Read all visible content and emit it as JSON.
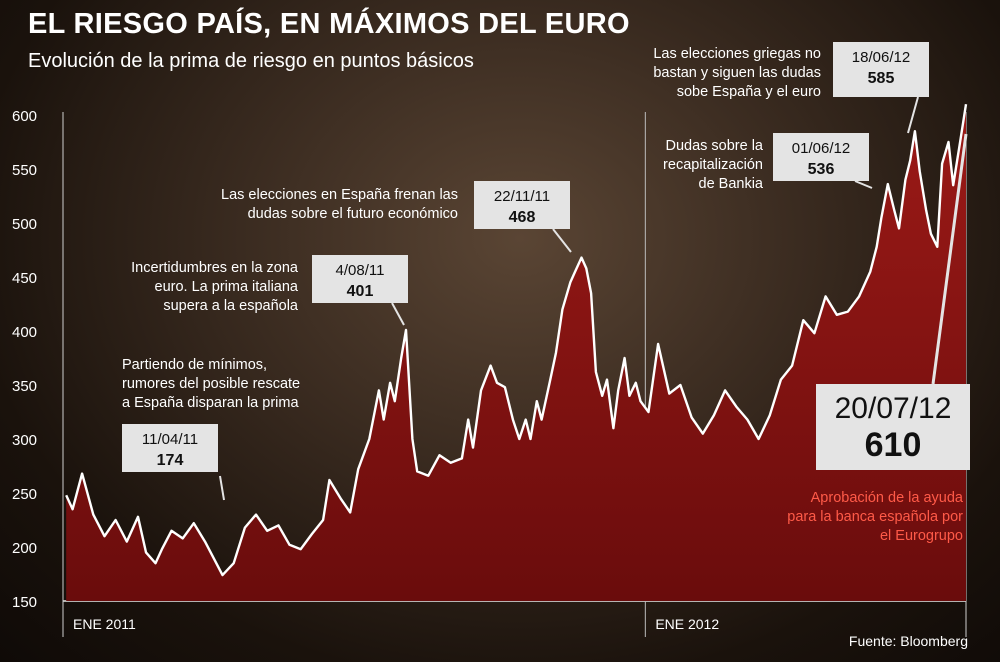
{
  "header": {
    "title": "EL RIESGO PAÍS, EN MÁXIMOS DEL EURO",
    "subtitle": "Evolución de la prima de riesgo en puntos básicos",
    "source": "Fuente: Bloomberg"
  },
  "chart_data": {
    "type": "area",
    "title": "EL RIESGO PAÍS, EN MÁXIMOS DEL EURO",
    "subtitle": "Evolución de la prima de riesgo en puntos básicos",
    "xlabel": "",
    "ylabel": "",
    "ylim": [
      150,
      620
    ],
    "yticks": [
      "150",
      "200",
      "250",
      "300",
      "350",
      "400",
      "450",
      "500",
      "550",
      "600"
    ],
    "xticks": [
      {
        "label": "ENE 2011",
        "date": "2011-01-01"
      },
      {
        "label": "ENE 2012",
        "date": "2012-01-01"
      }
    ],
    "xlim": [
      "2011-01-01",
      "2012-07-20"
    ],
    "grid": false,
    "colors": {
      "fill": "#8a1414",
      "line": "#ffffff",
      "callout_bg": "#e4e4e4",
      "red_text": "#ff5a48"
    },
    "series": [
      {
        "values": [
          [
            "2011-01-03",
            248
          ],
          [
            "2011-01-07",
            235
          ],
          [
            "2011-01-13",
            268
          ],
          [
            "2011-01-20",
            230
          ],
          [
            "2011-01-27",
            210
          ],
          [
            "2011-02-03",
            225
          ],
          [
            "2011-02-10",
            205
          ],
          [
            "2011-02-17",
            228
          ],
          [
            "2011-02-22",
            195
          ],
          [
            "2011-02-28",
            185
          ],
          [
            "2011-03-04",
            198
          ],
          [
            "2011-03-10",
            215
          ],
          [
            "2011-03-17",
            208
          ],
          [
            "2011-03-24",
            222
          ],
          [
            "2011-03-31",
            205
          ],
          [
            "2011-04-11",
            174
          ],
          [
            "2011-04-18",
            185
          ],
          [
            "2011-04-25",
            218
          ],
          [
            "2011-05-02",
            230
          ],
          [
            "2011-05-09",
            215
          ],
          [
            "2011-05-16",
            220
          ],
          [
            "2011-05-23",
            202
          ],
          [
            "2011-05-30",
            198
          ],
          [
            "2011-06-06",
            212
          ],
          [
            "2011-06-13",
            225
          ],
          [
            "2011-06-17",
            262
          ],
          [
            "2011-06-24",
            245
          ],
          [
            "2011-06-30",
            232
          ],
          [
            "2011-07-05",
            272
          ],
          [
            "2011-07-12",
            300
          ],
          [
            "2011-07-18",
            345
          ],
          [
            "2011-07-21",
            318
          ],
          [
            "2011-07-25",
            352
          ],
          [
            "2011-07-28",
            335
          ],
          [
            "2011-08-01",
            375
          ],
          [
            "2011-08-04",
            401
          ],
          [
            "2011-08-08",
            300
          ],
          [
            "2011-08-11",
            270
          ],
          [
            "2011-08-18",
            266
          ],
          [
            "2011-08-25",
            285
          ],
          [
            "2011-09-01",
            278
          ],
          [
            "2011-09-08",
            282
          ],
          [
            "2011-09-12",
            318
          ],
          [
            "2011-09-15",
            292
          ],
          [
            "2011-09-20",
            345
          ],
          [
            "2011-09-26",
            368
          ],
          [
            "2011-09-30",
            352
          ],
          [
            "2011-10-05",
            348
          ],
          [
            "2011-10-10",
            318
          ],
          [
            "2011-10-14",
            300
          ],
          [
            "2011-10-18",
            318
          ],
          [
            "2011-10-21",
            300
          ],
          [
            "2011-10-25",
            335
          ],
          [
            "2011-10-28",
            318
          ],
          [
            "2011-11-02",
            352
          ],
          [
            "2011-11-06",
            380
          ],
          [
            "2011-11-10",
            420
          ],
          [
            "2011-11-15",
            445
          ],
          [
            "2011-11-18",
            455
          ],
          [
            "2011-11-22",
            468
          ],
          [
            "2011-11-25",
            458
          ],
          [
            "2011-11-28",
            435
          ],
          [
            "2011-12-01",
            362
          ],
          [
            "2011-12-05",
            340
          ],
          [
            "2011-12-08",
            355
          ],
          [
            "2011-12-12",
            310
          ],
          [
            "2011-12-15",
            345
          ],
          [
            "2011-12-19",
            375
          ],
          [
            "2011-12-22",
            340
          ],
          [
            "2011-12-26",
            352
          ],
          [
            "2011-12-29",
            335
          ],
          [
            "2012-01-03",
            325
          ],
          [
            "2012-01-09",
            388
          ],
          [
            "2012-01-16",
            342
          ],
          [
            "2012-01-23",
            350
          ],
          [
            "2012-01-30",
            320
          ],
          [
            "2012-02-06",
            305
          ],
          [
            "2012-02-13",
            322
          ],
          [
            "2012-02-20",
            345
          ],
          [
            "2012-02-27",
            330
          ],
          [
            "2012-03-05",
            318
          ],
          [
            "2012-03-12",
            300
          ],
          [
            "2012-03-19",
            322
          ],
          [
            "2012-03-26",
            355
          ],
          [
            "2012-04-02",
            368
          ],
          [
            "2012-04-09",
            410
          ],
          [
            "2012-04-16",
            398
          ],
          [
            "2012-04-23",
            432
          ],
          [
            "2012-04-30",
            415
          ],
          [
            "2012-05-07",
            418
          ],
          [
            "2012-05-14",
            432
          ],
          [
            "2012-05-21",
            455
          ],
          [
            "2012-05-25",
            478
          ],
          [
            "2012-05-28",
            505
          ],
          [
            "2012-06-01",
            536
          ],
          [
            "2012-06-05",
            512
          ],
          [
            "2012-06-08",
            495
          ],
          [
            "2012-06-12",
            540
          ],
          [
            "2012-06-15",
            558
          ],
          [
            "2012-06-18",
            585
          ],
          [
            "2012-06-21",
            548
          ],
          [
            "2012-06-25",
            512
          ],
          [
            "2012-06-28",
            490
          ],
          [
            "2012-07-02",
            478
          ],
          [
            "2012-07-05",
            555
          ],
          [
            "2012-07-09",
            575
          ],
          [
            "2012-07-12",
            535
          ],
          [
            "2012-07-16",
            572
          ],
          [
            "2012-07-20",
            610
          ]
        ]
      }
    ],
    "callouts": [
      {
        "date_label": "11/04/11",
        "value": "174",
        "note": [
          "Partiendo de mínimos,",
          "rumores del posible rescate",
          "a España disparan la prima"
        ]
      },
      {
        "date_label": "4/08/11",
        "value": "401",
        "note": [
          "Incertidumbres en la zona",
          "euro. La prima italiana",
          "supera a la española"
        ]
      },
      {
        "date_label": "22/11/11",
        "value": "468",
        "note": [
          "Las elecciones en España frenan las",
          "dudas sobre el futuro económico"
        ]
      },
      {
        "date_label": "01/06/12",
        "value": "536",
        "note": [
          "Dudas sobre la",
          "recapitalización",
          "de Bankia"
        ]
      },
      {
        "date_label": "18/06/12",
        "value": "585",
        "note": [
          "Las elecciones griegas no",
          "bastan y siguen las dudas",
          "sobe España y el euro"
        ]
      },
      {
        "date_label": "20/07/12",
        "value": "610",
        "note": [
          "Aprobación de la ayuda",
          "para la banca española por",
          "el Eurogrupo"
        ]
      }
    ]
  }
}
